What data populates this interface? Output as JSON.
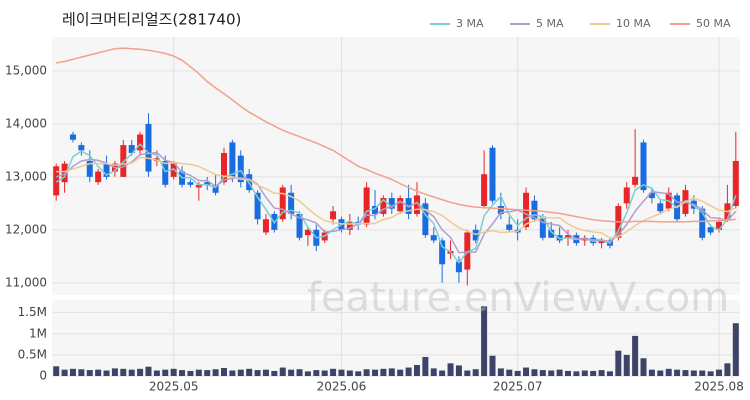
{
  "chart_data": [
    {
      "type": "candlestick",
      "title": "레이크머티리얼즈(281740)",
      "watermark": "feature.enViewV.com",
      "up_color": "#e8262a",
      "down_color": "#1a6de0",
      "legend": "upper right",
      "grid": true,
      "ylim": [
        10770,
        15640
      ],
      "yticks": [
        {
          "value": 11000,
          "label": "11,000"
        },
        {
          "value": 12000,
          "label": "12,000"
        },
        {
          "value": 13000,
          "label": "13,000"
        },
        {
          "value": 14000,
          "label": "14,000"
        },
        {
          "value": 15000,
          "label": "15,000"
        }
      ],
      "candles": [
        [
          12650,
          13250,
          12550,
          13200
        ],
        [
          12900,
          13300,
          12700,
          13250
        ],
        [
          13800,
          13850,
          13650,
          13700
        ],
        [
          13600,
          13650,
          13400,
          13500
        ],
        [
          13300,
          13500,
          12900,
          13000
        ],
        [
          12900,
          13150,
          12850,
          13100
        ],
        [
          13250,
          13400,
          12950,
          13000
        ],
        [
          13100,
          13300,
          13000,
          13250
        ],
        [
          13000,
          13700,
          13000,
          13600
        ],
        [
          13600,
          13700,
          13400,
          13450
        ],
        [
          13500,
          13850,
          13400,
          13800
        ],
        [
          14000,
          14200,
          13000,
          13100
        ],
        [
          13300,
          13500,
          13200,
          13350
        ],
        [
          13300,
          13400,
          12800,
          12850
        ],
        [
          13000,
          13300,
          12950,
          13250
        ],
        [
          13100,
          13200,
          12800,
          12850
        ],
        [
          12900,
          12950,
          12800,
          12850
        ],
        [
          12800,
          12900,
          12550,
          12850
        ],
        [
          12900,
          13000,
          12750,
          12850
        ],
        [
          12850,
          13050,
          12650,
          12700
        ],
        [
          12900,
          13550,
          12850,
          13450
        ],
        [
          13650,
          13700,
          12900,
          13000
        ],
        [
          13400,
          13500,
          12800,
          12900
        ],
        [
          13050,
          13150,
          12700,
          12750
        ],
        [
          12700,
          12750,
          12100,
          12200
        ],
        [
          11950,
          12300,
          11900,
          12200
        ],
        [
          12300,
          12350,
          11950,
          12000
        ],
        [
          12200,
          12850,
          12150,
          12800
        ],
        [
          12700,
          12850,
          12200,
          12300
        ],
        [
          12300,
          12350,
          11800,
          11850
        ],
        [
          11900,
          12050,
          11700,
          12000
        ],
        [
          12000,
          12100,
          11600,
          11700
        ],
        [
          11800,
          12000,
          11750,
          11950
        ],
        [
          12200,
          12450,
          12100,
          12350
        ],
        [
          12200,
          12250,
          11950,
          12000
        ],
        [
          12000,
          12300,
          11900,
          12150
        ],
        [
          12150,
          12250,
          12000,
          12100
        ],
        [
          12100,
          12900,
          12050,
          12800
        ],
        [
          12450,
          12750,
          12200,
          12300
        ],
        [
          12300,
          12650,
          12250,
          12600
        ],
        [
          12600,
          12700,
          12300,
          12400
        ],
        [
          12350,
          12650,
          12300,
          12600
        ],
        [
          12600,
          12850,
          12200,
          12300
        ],
        [
          12300,
          12900,
          12250,
          12650
        ],
        [
          12500,
          12600,
          11850,
          11900
        ],
        [
          11900,
          12050,
          11750,
          11800
        ],
        [
          11800,
          11850,
          11000,
          11350
        ],
        [
          11550,
          11800,
          11450,
          11600
        ],
        [
          11400,
          11500,
          11000,
          11200
        ],
        [
          11250,
          12000,
          10950,
          11950
        ],
        [
          12000,
          12100,
          11750,
          11800
        ],
        [
          12450,
          13500,
          12400,
          13050
        ],
        [
          13550,
          13600,
          12500,
          12550
        ],
        [
          12450,
          12700,
          12200,
          12300
        ],
        [
          12100,
          12250,
          11950,
          12000
        ],
        [
          12000,
          12200,
          11800,
          11950
        ],
        [
          12050,
          12800,
          12000,
          12700
        ],
        [
          12550,
          12650,
          12150,
          12200
        ],
        [
          12250,
          12300,
          11800,
          11850
        ],
        [
          12000,
          12150,
          11850,
          11850
        ],
        [
          11900,
          12050,
          11750,
          11800
        ],
        [
          11850,
          12000,
          11700,
          11900
        ],
        [
          11900,
          11950,
          11700,
          11750
        ],
        [
          11800,
          11900,
          11700,
          11850
        ],
        [
          11850,
          11900,
          11700,
          11750
        ],
        [
          11750,
          11850,
          11650,
          11800
        ],
        [
          11800,
          11850,
          11650,
          11700
        ],
        [
          11850,
          12500,
          11800,
          12450
        ],
        [
          12500,
          12900,
          12400,
          12800
        ],
        [
          12850,
          13900,
          12800,
          13000
        ],
        [
          13650,
          13700,
          12700,
          12750
        ],
        [
          12700,
          12800,
          12500,
          12600
        ],
        [
          12500,
          12550,
          12300,
          12350
        ],
        [
          12400,
          12800,
          12350,
          12700
        ],
        [
          12650,
          12700,
          12150,
          12200
        ],
        [
          12300,
          12850,
          12250,
          12750
        ],
        [
          12550,
          12650,
          12300,
          12400
        ],
        [
          12400,
          12450,
          11800,
          11850
        ],
        [
          12050,
          12100,
          11900,
          11950
        ],
        [
          12000,
          12200,
          11950,
          12150
        ],
        [
          12200,
          12850,
          12150,
          12500
        ],
        [
          12450,
          13850,
          12400,
          13300
        ]
      ],
      "series": [
        {
          "name": "3 MA",
          "color": "#7ccfcf",
          "values": [
            12900,
            13000,
            13383,
            13483,
            13400,
            13200,
            13033,
            13117,
            13283,
            13433,
            13617,
            13450,
            13417,
            13100,
            13150,
            12983,
            12983,
            12850,
            12850,
            12800,
            13000,
            13050,
            13117,
            12883,
            12617,
            12383,
            12133,
            12333,
            12367,
            12317,
            12050,
            11850,
            11883,
            12000,
            12100,
            12167,
            12083,
            12350,
            12400,
            12567,
            12433,
            12533,
            12433,
            12517,
            12283,
            12117,
            11683,
            11583,
            11383,
            11583,
            11650,
            12267,
            12467,
            12633,
            12283,
            12083,
            12217,
            12283,
            12250,
            11967,
            11833,
            11850,
            11817,
            11833,
            11783,
            11800,
            11750,
            11983,
            12317,
            12750,
            12850,
            12783,
            12567,
            12550,
            12417,
            12550,
            12450,
            12333,
            12067,
            12000,
            12200,
            12650
          ]
        },
        {
          "name": "5 MA",
          "color": "#b39dce",
          "values": [
            13000,
            13050,
            13200,
            13300,
            13330,
            13310,
            13260,
            13170,
            13190,
            13280,
            13420,
            13440,
            13460,
            13310,
            13270,
            13080,
            13030,
            12930,
            12930,
            12820,
            12940,
            12970,
            12980,
            12960,
            12860,
            12610,
            12410,
            12390,
            12300,
            12230,
            12190,
            12130,
            11960,
            11970,
            12000,
            12030,
            12110,
            12280,
            12270,
            12390,
            12440,
            12540,
            12440,
            12510,
            12370,
            12250,
            12000,
            11860,
            11570,
            11580,
            11580,
            11920,
            12110,
            12330,
            12340,
            12370,
            12300,
            12230,
            12140,
            12110,
            12080,
            11920,
            11830,
            11830,
            11810,
            11810,
            11770,
            11910,
            12100,
            12350,
            12540,
            12720,
            12700,
            12680,
            12520,
            12520,
            12480,
            12380,
            12230,
            12220,
            12170,
            12350
          ]
        },
        {
          "name": "10 MA",
          "color": "#f2c992",
          "values": [
            13100,
            13100,
            13150,
            13200,
            13250,
            13250,
            13250,
            13220,
            13240,
            13260,
            13365,
            13350,
            13315,
            13250,
            13275,
            13250,
            13235,
            13195,
            13120,
            13045,
            13010,
            13000,
            12955,
            12945,
            12840,
            12775,
            12690,
            12685,
            12630,
            12545,
            12400,
            12270,
            12175,
            12135,
            12115,
            12110,
            12120,
            12120,
            12120,
            12195,
            12235,
            12325,
            12360,
            12390,
            12380,
            12345,
            12270,
            12150,
            12040,
            11975,
            11915,
            11960,
            11985,
            11950,
            11960,
            11975,
            12110,
            12170,
            12235,
            12225,
            12225,
            12110,
            12030,
            11985,
            11960,
            11945,
            11845,
            11870,
            11965,
            12080,
            12175,
            12245,
            12305,
            12390,
            12435,
            12530,
            12600,
            12540,
            12455,
            12370,
            12345,
            12415
          ]
        },
        {
          "name": "50 MA",
          "color": "#f4a08a",
          "values": [
            15150,
            15180,
            15220,
            15260,
            15300,
            15340,
            15380,
            15420,
            15430,
            15420,
            15410,
            15390,
            15360,
            15330,
            15280,
            15200,
            15080,
            14950,
            14800,
            14680,
            14570,
            14450,
            14330,
            14220,
            14130,
            14040,
            13960,
            13880,
            13820,
            13760,
            13700,
            13640,
            13570,
            13500,
            13400,
            13300,
            13200,
            13140,
            13070,
            13010,
            12950,
            12870,
            12800,
            12730,
            12670,
            12620,
            12570,
            12520,
            12480,
            12450,
            12430,
            12420,
            12410,
            12400,
            12390,
            12380,
            12370,
            12360,
            12350,
            12330,
            12310,
            12280,
            12250,
            12220,
            12190,
            12170,
            12160,
            12150,
            12150,
            12160,
            12160,
            12160,
            12150,
            12150,
            12150,
            12150,
            12160,
            12160,
            12170,
            12170,
            12180,
            12200
          ]
        }
      ]
    },
    {
      "type": "bar",
      "color": "#3d4468",
      "grid": true,
      "ylim": [
        0,
        1800000
      ],
      "yticks": [
        0,
        {
          "value": 500000,
          "label": "0.5M"
        },
        {
          "value": 1000000,
          "label": "1M"
        },
        {
          "value": 1500000,
          "label": "1.5M"
        }
      ],
      "categories": [
        null,
        null,
        null,
        null,
        null,
        null,
        null,
        null,
        null,
        null,
        null,
        null,
        null,
        null,
        "2025.05",
        null,
        null,
        null,
        null,
        null,
        null,
        null,
        null,
        null,
        null,
        null,
        null,
        null,
        null,
        null,
        null,
        null,
        null,
        null,
        "2025.06",
        null,
        null,
        null,
        null,
        null,
        null,
        null,
        null,
        null,
        null,
        null,
        null,
        null,
        null,
        null,
        null,
        null,
        null,
        null,
        null,
        "2025.07",
        null,
        null,
        null,
        null,
        null,
        null,
        null,
        null,
        null,
        null,
        null,
        null,
        null,
        null,
        null,
        null,
        null,
        null,
        null,
        null,
        null,
        null,
        null,
        "2025.08",
        null,
        null
      ],
      "values": [
        230000,
        150000,
        170000,
        160000,
        140000,
        150000,
        130000,
        180000,
        170000,
        150000,
        170000,
        220000,
        130000,
        150000,
        170000,
        140000,
        120000,
        150000,
        140000,
        160000,
        190000,
        130000,
        150000,
        170000,
        140000,
        150000,
        120000,
        200000,
        150000,
        160000,
        110000,
        140000,
        130000,
        170000,
        150000,
        130000,
        110000,
        160000,
        150000,
        170000,
        180000,
        150000,
        200000,
        260000,
        450000,
        180000,
        130000,
        300000,
        250000,
        130000,
        160000,
        1650000,
        480000,
        180000,
        150000,
        120000,
        200000,
        160000,
        140000,
        130000,
        150000,
        120000,
        110000,
        130000,
        120000,
        140000,
        110000,
        600000,
        500000,
        950000,
        420000,
        150000,
        130000,
        170000,
        150000,
        140000,
        130000,
        130000,
        110000,
        150000,
        300000,
        1250000
      ]
    }
  ]
}
